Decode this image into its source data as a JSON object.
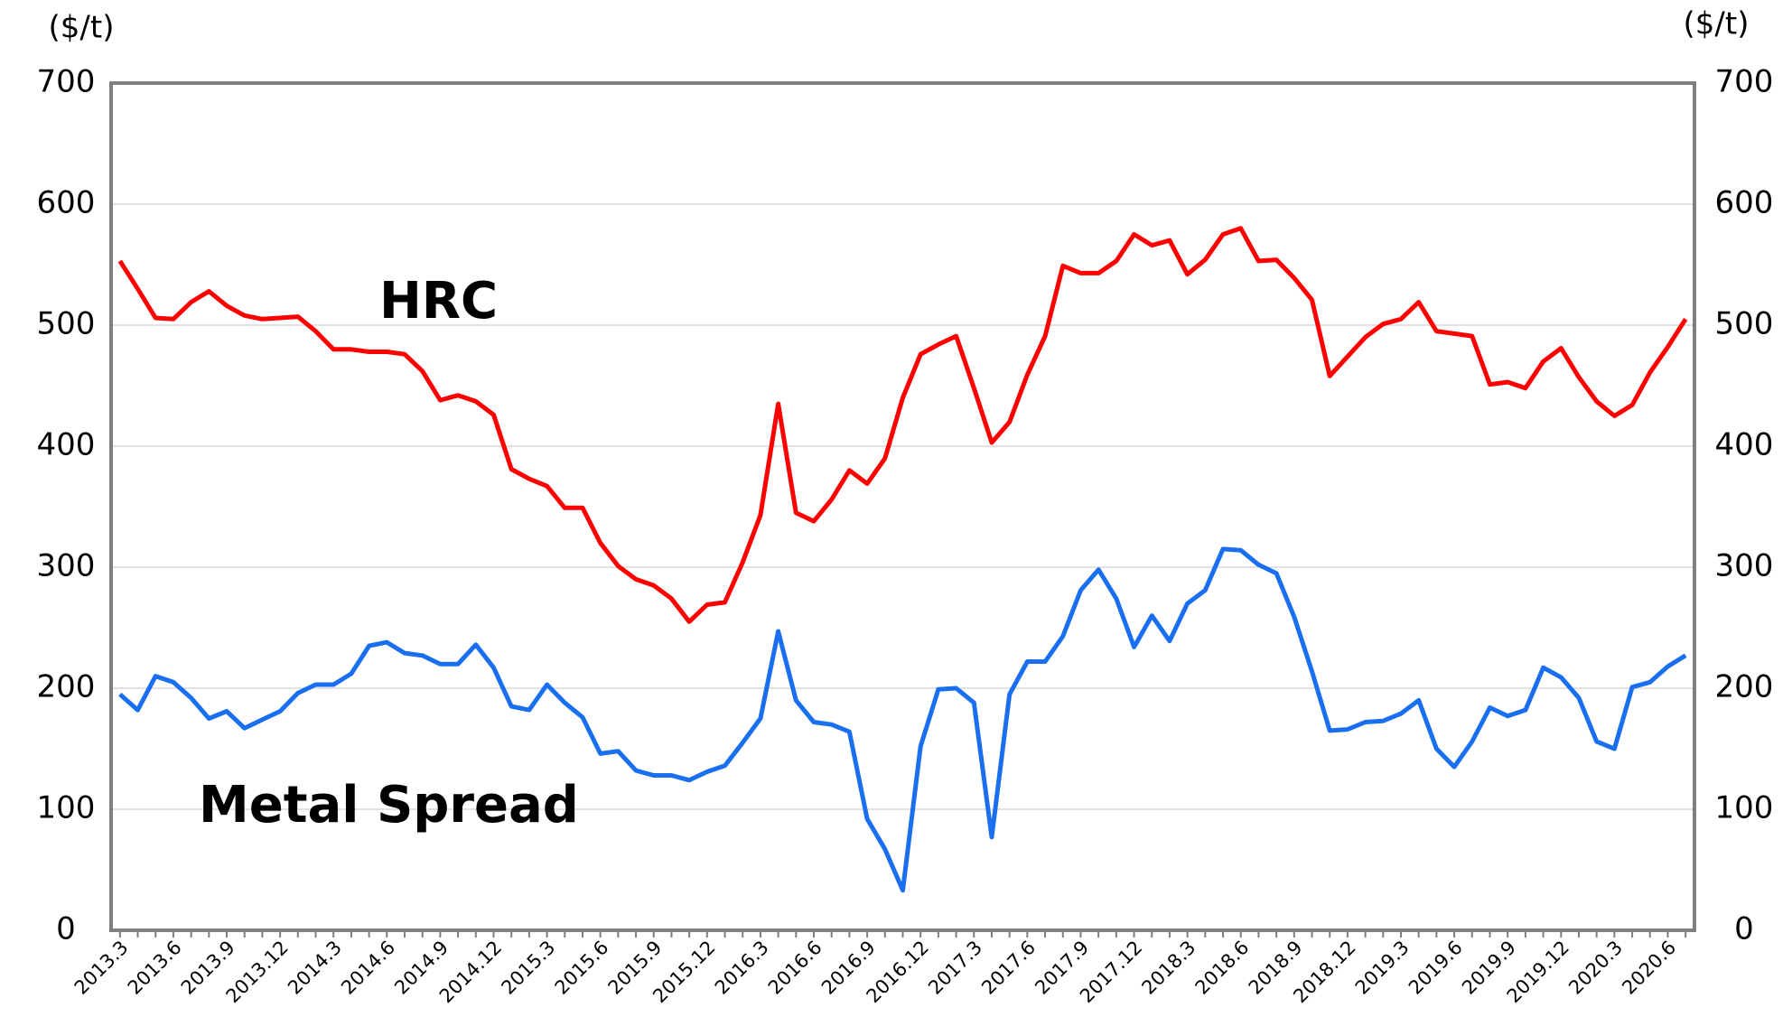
{
  "chart_data": {
    "type": "line",
    "y_label": "($/t)",
    "y2_label": "($/t)",
    "categories": [
      "2013.3",
      null,
      null,
      "2013.6",
      null,
      null,
      "2013.9",
      null,
      null,
      "2013.12",
      null,
      null,
      "2014.3",
      null,
      null,
      "2014.6",
      null,
      null,
      "2014.9",
      null,
      null,
      "2014.12",
      null,
      null,
      "2015.3",
      null,
      null,
      "2015.6",
      null,
      null,
      "2015.9",
      null,
      null,
      "2015.12",
      null,
      null,
      "2016.3",
      null,
      null,
      "2016.6",
      null,
      null,
      "2016.9",
      null,
      null,
      "2016.12",
      null,
      null,
      "2017.3",
      null,
      null,
      "2017.6",
      null,
      null,
      "2017.9",
      null,
      null,
      "2017.12",
      null,
      null,
      "2018.3",
      null,
      null,
      "2018.6",
      null,
      null,
      "2018.9",
      null,
      null,
      "2018.12",
      null,
      null,
      "2019.3",
      null,
      null,
      "2019.6",
      null,
      null,
      "2019.9",
      null,
      null,
      "2019.12",
      null,
      null,
      "2020.3",
      null,
      null,
      "2020.6",
      null
    ],
    "series": [
      {
        "name": "HRC",
        "color": "#ff0000",
        "values": [
          553,
          530,
          506,
          505,
          519,
          528,
          516,
          508,
          505,
          506,
          507,
          495,
          480,
          480,
          478,
          478,
          476,
          462,
          438,
          442,
          437,
          426,
          381,
          373,
          367,
          349,
          349,
          320,
          301,
          290,
          285,
          274,
          255,
          269,
          271,
          304,
          343,
          435,
          345,
          338,
          356,
          380,
          369,
          390,
          440,
          476,
          484,
          491,
          448,
          403,
          420,
          459,
          491,
          549,
          543,
          543,
          553,
          575,
          566,
          570,
          542,
          554,
          575,
          580,
          553,
          554,
          539,
          521,
          458,
          474,
          490,
          501,
          505,
          519,
          495,
          493,
          491,
          451,
          453,
          448,
          470,
          481,
          457,
          437,
          425,
          434,
          461,
          482,
          505
        ]
      },
      {
        "name": "Metal Spread",
        "color": "#1a6ff0",
        "values": [
          195,
          182,
          210,
          205,
          192,
          175,
          181,
          167,
          174,
          181,
          196,
          203,
          203,
          212,
          235,
          238,
          229,
          227,
          220,
          220,
          236,
          217,
          185,
          182,
          203,
          188,
          176,
          146,
          148,
          132,
          128,
          128,
          124,
          131,
          136,
          155,
          175,
          247,
          190,
          172,
          170,
          164,
          92,
          67,
          33,
          152,
          199,
          200,
          188,
          77,
          195,
          222,
          222,
          243,
          281,
          298,
          274,
          234,
          260,
          239,
          270,
          281,
          315,
          314,
          302,
          295,
          259,
          214,
          165,
          166,
          172,
          173,
          179,
          190,
          150,
          135,
          156,
          184,
          177,
          182,
          217,
          209,
          192,
          156,
          150,
          201,
          205,
          218,
          227
        ]
      }
    ],
    "ylim": [
      0,
      700
    ],
    "yticks": [
      0,
      100,
      200,
      300,
      400,
      500,
      600,
      700
    ],
    "y2lim": [
      0,
      700
    ],
    "y2ticks": [
      0,
      100,
      200,
      300,
      400,
      500,
      600,
      700
    ],
    "grid": true
  }
}
